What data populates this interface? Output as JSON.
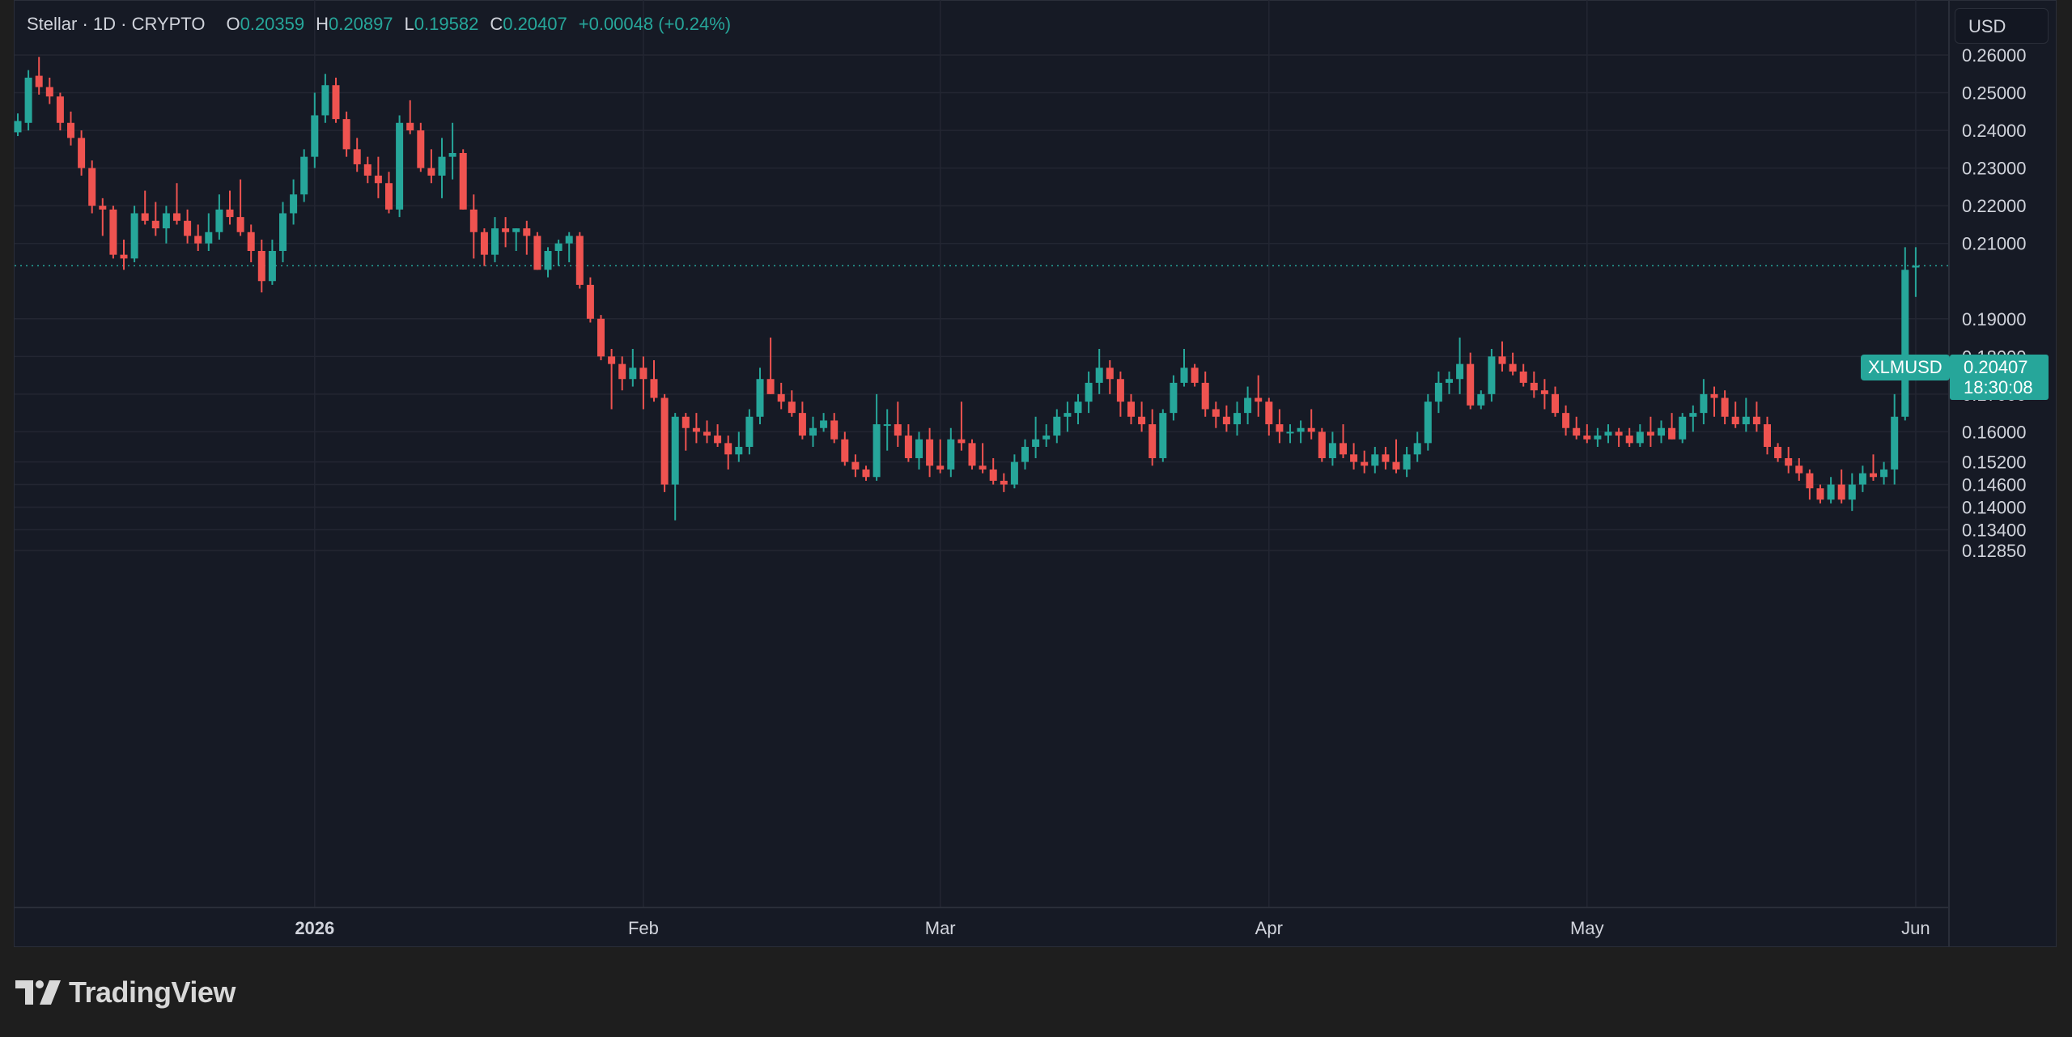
{
  "header": {
    "symbol": "Stellar · 1D · CRYPTO",
    "open_label": "O",
    "open": "0.20359",
    "high_label": "H",
    "high": "0.20897",
    "low_label": "L",
    "low": "0.19582",
    "close_label": "C",
    "close": "0.20407",
    "change": "+0.00048 (+0.24%)"
  },
  "currency_button": "USD",
  "last_price_tag": {
    "symbol": "XLMUSD",
    "price": "0.20407",
    "countdown": "18:30:08"
  },
  "brand": "TradingView",
  "colors": {
    "up": "#26a69a",
    "down": "#ef5350",
    "background": "#161a25",
    "grid": "#232632",
    "text": "#d1d4dc"
  },
  "chart_data": {
    "type": "candlestick",
    "symbol": "XLMUSD",
    "interval": "1D",
    "ylim": [
      0.1285,
      0.264
    ],
    "y_ticks": [
      "0.26000",
      "0.25000",
      "0.24000",
      "0.23000",
      "0.22000",
      "0.21000",
      "0.19000",
      "0.18000",
      "0.17000",
      "0.16000",
      "0.15200",
      "0.14600",
      "0.14000",
      "0.13400",
      "0.12850"
    ],
    "x_ticks": [
      "2026",
      "Feb",
      "Mar",
      "Apr",
      "May",
      "Jun"
    ],
    "x_tick_days": [
      28,
      59,
      87,
      118,
      148,
      179
    ],
    "last_price": 0.20407,
    "grid": true,
    "candles": [
      [
        0,
        0.2395,
        0.2445,
        0.2385,
        0.2425
      ],
      [
        1,
        0.242,
        0.256,
        0.24,
        0.254
      ],
      [
        2,
        0.2545,
        0.2595,
        0.2495,
        0.2515
      ],
      [
        3,
        0.2515,
        0.254,
        0.247,
        0.249
      ],
      [
        4,
        0.249,
        0.25,
        0.24,
        0.242
      ],
      [
        5,
        0.242,
        0.245,
        0.236,
        0.238
      ],
      [
        6,
        0.238,
        0.24,
        0.228,
        0.23
      ],
      [
        7,
        0.23,
        0.232,
        0.218,
        0.22
      ],
      [
        8,
        0.22,
        0.222,
        0.212,
        0.219
      ],
      [
        9,
        0.219,
        0.22,
        0.206,
        0.207
      ],
      [
        10,
        0.207,
        0.211,
        0.203,
        0.206
      ],
      [
        11,
        0.206,
        0.22,
        0.205,
        0.218
      ],
      [
        12,
        0.218,
        0.224,
        0.215,
        0.216
      ],
      [
        13,
        0.216,
        0.221,
        0.212,
        0.214
      ],
      [
        14,
        0.214,
        0.22,
        0.21,
        0.218
      ],
      [
        15,
        0.218,
        0.226,
        0.215,
        0.216
      ],
      [
        16,
        0.216,
        0.219,
        0.21,
        0.212
      ],
      [
        17,
        0.212,
        0.215,
        0.208,
        0.21
      ],
      [
        18,
        0.21,
        0.218,
        0.208,
        0.213
      ],
      [
        19,
        0.213,
        0.223,
        0.211,
        0.219
      ],
      [
        20,
        0.219,
        0.224,
        0.215,
        0.217
      ],
      [
        21,
        0.217,
        0.227,
        0.212,
        0.213
      ],
      [
        22,
        0.213,
        0.215,
        0.205,
        0.208
      ],
      [
        23,
        0.208,
        0.211,
        0.197,
        0.2
      ],
      [
        24,
        0.2,
        0.211,
        0.199,
        0.208
      ],
      [
        25,
        0.208,
        0.221,
        0.205,
        0.218
      ],
      [
        26,
        0.218,
        0.227,
        0.215,
        0.223
      ],
      [
        27,
        0.223,
        0.235,
        0.221,
        0.233
      ],
      [
        28,
        0.233,
        0.25,
        0.23,
        0.244
      ],
      [
        29,
        0.244,
        0.255,
        0.242,
        0.252
      ],
      [
        30,
        0.252,
        0.254,
        0.242,
        0.243
      ],
      [
        31,
        0.243,
        0.245,
        0.233,
        0.235
      ],
      [
        32,
        0.235,
        0.238,
        0.229,
        0.231
      ],
      [
        33,
        0.231,
        0.233,
        0.226,
        0.228
      ],
      [
        34,
        0.228,
        0.233,
        0.222,
        0.226
      ],
      [
        35,
        0.226,
        0.229,
        0.218,
        0.219
      ],
      [
        36,
        0.219,
        0.244,
        0.217,
        0.242
      ],
      [
        37,
        0.242,
        0.248,
        0.239,
        0.24
      ],
      [
        38,
        0.24,
        0.242,
        0.229,
        0.23
      ],
      [
        39,
        0.23,
        0.235,
        0.226,
        0.228
      ],
      [
        40,
        0.228,
        0.238,
        0.222,
        0.233
      ],
      [
        41,
        0.233,
        0.242,
        0.227,
        0.234
      ],
      [
        42,
        0.234,
        0.235,
        0.219,
        0.219
      ],
      [
        43,
        0.219,
        0.223,
        0.206,
        0.213
      ],
      [
        44,
        0.213,
        0.214,
        0.204,
        0.207
      ],
      [
        45,
        0.207,
        0.217,
        0.205,
        0.214
      ],
      [
        46,
        0.214,
        0.217,
        0.209,
        0.213
      ],
      [
        47,
        0.213,
        0.214,
        0.208,
        0.214
      ],
      [
        48,
        0.214,
        0.216,
        0.207,
        0.212
      ],
      [
        49,
        0.212,
        0.213,
        0.203,
        0.203
      ],
      [
        50,
        0.203,
        0.209,
        0.201,
        0.208
      ],
      [
        51,
        0.208,
        0.211,
        0.204,
        0.21
      ],
      [
        52,
        0.21,
        0.213,
        0.205,
        0.212
      ],
      [
        53,
        0.212,
        0.213,
        0.198,
        0.199
      ],
      [
        54,
        0.199,
        0.201,
        0.189,
        0.19
      ],
      [
        55,
        0.19,
        0.191,
        0.179,
        0.18
      ],
      [
        56,
        0.18,
        0.182,
        0.166,
        0.178
      ],
      [
        57,
        0.178,
        0.18,
        0.171,
        0.174
      ],
      [
        58,
        0.174,
        0.182,
        0.172,
        0.177
      ],
      [
        59,
        0.177,
        0.18,
        0.166,
        0.174
      ],
      [
        60,
        0.174,
        0.179,
        0.168,
        0.169
      ],
      [
        61,
        0.169,
        0.17,
        0.144,
        0.146
      ],
      [
        62,
        0.146,
        0.165,
        0.1365,
        0.164
      ],
      [
        63,
        0.164,
        0.165,
        0.155,
        0.161
      ],
      [
        64,
        0.161,
        0.165,
        0.157,
        0.16
      ],
      [
        65,
        0.16,
        0.163,
        0.157,
        0.159
      ],
      [
        66,
        0.159,
        0.162,
        0.156,
        0.157
      ],
      [
        67,
        0.157,
        0.159,
        0.15,
        0.154
      ],
      [
        68,
        0.154,
        0.16,
        0.152,
        0.156
      ],
      [
        69,
        0.156,
        0.166,
        0.154,
        0.164
      ],
      [
        70,
        0.164,
        0.177,
        0.162,
        0.174
      ],
      [
        71,
        0.174,
        0.185,
        0.17,
        0.17
      ],
      [
        72,
        0.17,
        0.173,
        0.166,
        0.168
      ],
      [
        73,
        0.168,
        0.171,
        0.164,
        0.165
      ],
      [
        74,
        0.165,
        0.168,
        0.158,
        0.159
      ],
      [
        75,
        0.159,
        0.164,
        0.156,
        0.161
      ],
      [
        76,
        0.161,
        0.165,
        0.16,
        0.163
      ],
      [
        77,
        0.163,
        0.165,
        0.157,
        0.158
      ],
      [
        78,
        0.158,
        0.16,
        0.151,
        0.152
      ],
      [
        79,
        0.152,
        0.154,
        0.148,
        0.15
      ],
      [
        80,
        0.15,
        0.151,
        0.147,
        0.148
      ],
      [
        81,
        0.148,
        0.17,
        0.147,
        0.162
      ],
      [
        82,
        0.162,
        0.166,
        0.155,
        0.162
      ],
      [
        83,
        0.162,
        0.168,
        0.156,
        0.159
      ],
      [
        84,
        0.159,
        0.162,
        0.152,
        0.153
      ],
      [
        85,
        0.153,
        0.16,
        0.15,
        0.158
      ],
      [
        86,
        0.158,
        0.161,
        0.148,
        0.151
      ],
      [
        87,
        0.151,
        0.158,
        0.149,
        0.15
      ],
      [
        88,
        0.15,
        0.161,
        0.148,
        0.158
      ],
      [
        89,
        0.158,
        0.168,
        0.155,
        0.157
      ],
      [
        90,
        0.157,
        0.158,
        0.15,
        0.151
      ],
      [
        91,
        0.151,
        0.157,
        0.149,
        0.15
      ],
      [
        92,
        0.15,
        0.153,
        0.146,
        0.147
      ],
      [
        93,
        0.147,
        0.149,
        0.144,
        0.146
      ],
      [
        94,
        0.146,
        0.154,
        0.145,
        0.152
      ],
      [
        95,
        0.152,
        0.158,
        0.15,
        0.156
      ],
      [
        96,
        0.156,
        0.164,
        0.153,
        0.158
      ],
      [
        97,
        0.158,
        0.162,
        0.156,
        0.159
      ],
      [
        98,
        0.159,
        0.166,
        0.157,
        0.164
      ],
      [
        99,
        0.164,
        0.168,
        0.16,
        0.165
      ],
      [
        100,
        0.165,
        0.17,
        0.162,
        0.168
      ],
      [
        101,
        0.168,
        0.176,
        0.165,
        0.173
      ],
      [
        102,
        0.173,
        0.182,
        0.17,
        0.177
      ],
      [
        103,
        0.177,
        0.179,
        0.17,
        0.174
      ],
      [
        104,
        0.174,
        0.176,
        0.164,
        0.168
      ],
      [
        105,
        0.168,
        0.17,
        0.162,
        0.164
      ],
      [
        106,
        0.164,
        0.168,
        0.16,
        0.162
      ],
      [
        107,
        0.162,
        0.166,
        0.151,
        0.153
      ],
      [
        108,
        0.153,
        0.166,
        0.152,
        0.165
      ],
      [
        109,
        0.165,
        0.175,
        0.163,
        0.173
      ],
      [
        110,
        0.173,
        0.182,
        0.172,
        0.177
      ],
      [
        111,
        0.177,
        0.178,
        0.172,
        0.173
      ],
      [
        112,
        0.173,
        0.176,
        0.164,
        0.166
      ],
      [
        113,
        0.166,
        0.168,
        0.161,
        0.164
      ],
      [
        114,
        0.164,
        0.167,
        0.16,
        0.162
      ],
      [
        115,
        0.162,
        0.168,
        0.159,
        0.165
      ],
      [
        116,
        0.165,
        0.172,
        0.162,
        0.169
      ],
      [
        117,
        0.169,
        0.175,
        0.164,
        0.168
      ],
      [
        118,
        0.168,
        0.169,
        0.159,
        0.162
      ],
      [
        119,
        0.162,
        0.166,
        0.157,
        0.16
      ],
      [
        120,
        0.16,
        0.162,
        0.157,
        0.16
      ],
      [
        121,
        0.16,
        0.163,
        0.157,
        0.161
      ],
      [
        122,
        0.161,
        0.166,
        0.158,
        0.16
      ],
      [
        123,
        0.16,
        0.161,
        0.152,
        0.153
      ],
      [
        124,
        0.153,
        0.16,
        0.151,
        0.157
      ],
      [
        125,
        0.157,
        0.162,
        0.153,
        0.154
      ],
      [
        126,
        0.154,
        0.157,
        0.15,
        0.152
      ],
      [
        127,
        0.152,
        0.155,
        0.149,
        0.151
      ],
      [
        128,
        0.151,
        0.156,
        0.149,
        0.154
      ],
      [
        129,
        0.154,
        0.156,
        0.15,
        0.152
      ],
      [
        130,
        0.152,
        0.158,
        0.149,
        0.15
      ],
      [
        131,
        0.15,
        0.156,
        0.148,
        0.154
      ],
      [
        132,
        0.154,
        0.16,
        0.152,
        0.157
      ],
      [
        133,
        0.157,
        0.17,
        0.155,
        0.168
      ],
      [
        134,
        0.168,
        0.176,
        0.165,
        0.173
      ],
      [
        135,
        0.173,
        0.176,
        0.17,
        0.174
      ],
      [
        136,
        0.174,
        0.185,
        0.17,
        0.178
      ],
      [
        137,
        0.178,
        0.181,
        0.166,
        0.167
      ],
      [
        138,
        0.167,
        0.171,
        0.166,
        0.17
      ],
      [
        139,
        0.17,
        0.182,
        0.168,
        0.18
      ],
      [
        140,
        0.18,
        0.184,
        0.176,
        0.178
      ],
      [
        141,
        0.178,
        0.181,
        0.175,
        0.176
      ],
      [
        142,
        0.176,
        0.178,
        0.172,
        0.173
      ],
      [
        143,
        0.173,
        0.176,
        0.169,
        0.171
      ],
      [
        144,
        0.171,
        0.174,
        0.166,
        0.17
      ],
      [
        145,
        0.17,
        0.172,
        0.164,
        0.165
      ],
      [
        146,
        0.165,
        0.167,
        0.159,
        0.161
      ],
      [
        147,
        0.161,
        0.164,
        0.158,
        0.159
      ],
      [
        148,
        0.159,
        0.162,
        0.157,
        0.158
      ],
      [
        149,
        0.158,
        0.161,
        0.156,
        0.159
      ],
      [
        150,
        0.159,
        0.162,
        0.157,
        0.16
      ],
      [
        151,
        0.16,
        0.161,
        0.156,
        0.159
      ],
      [
        152,
        0.159,
        0.161,
        0.156,
        0.157
      ],
      [
        153,
        0.157,
        0.162,
        0.156,
        0.16
      ],
      [
        154,
        0.16,
        0.164,
        0.156,
        0.159
      ],
      [
        155,
        0.159,
        0.163,
        0.157,
        0.161
      ],
      [
        156,
        0.161,
        0.165,
        0.158,
        0.158
      ],
      [
        157,
        0.158,
        0.165,
        0.157,
        0.164
      ],
      [
        158,
        0.164,
        0.167,
        0.16,
        0.165
      ],
      [
        159,
        0.165,
        0.174,
        0.162,
        0.17
      ],
      [
        160,
        0.17,
        0.172,
        0.164,
        0.169
      ],
      [
        161,
        0.169,
        0.171,
        0.162,
        0.164
      ],
      [
        162,
        0.164,
        0.168,
        0.161,
        0.162
      ],
      [
        163,
        0.162,
        0.169,
        0.16,
        0.164
      ],
      [
        164,
        0.164,
        0.168,
        0.16,
        0.162
      ],
      [
        165,
        0.162,
        0.164,
        0.154,
        0.156
      ],
      [
        166,
        0.156,
        0.157,
        0.152,
        0.153
      ],
      [
        167,
        0.153,
        0.156,
        0.149,
        0.151
      ],
      [
        168,
        0.151,
        0.153,
        0.147,
        0.149
      ],
      [
        169,
        0.149,
        0.15,
        0.142,
        0.145
      ],
      [
        170,
        0.145,
        0.146,
        0.141,
        0.142
      ],
      [
        171,
        0.142,
        0.148,
        0.141,
        0.146
      ],
      [
        172,
        0.146,
        0.15,
        0.141,
        0.142
      ],
      [
        173,
        0.142,
        0.149,
        0.139,
        0.146
      ],
      [
        174,
        0.146,
        0.151,
        0.144,
        0.149
      ],
      [
        175,
        0.149,
        0.154,
        0.147,
        0.148
      ],
      [
        176,
        0.148,
        0.152,
        0.146,
        0.15
      ],
      [
        177,
        0.15,
        0.17,
        0.146,
        0.164
      ],
      [
        178,
        0.164,
        0.209,
        0.163,
        0.203
      ],
      [
        179,
        0.2036,
        0.209,
        0.1958,
        0.2041
      ]
    ]
  }
}
